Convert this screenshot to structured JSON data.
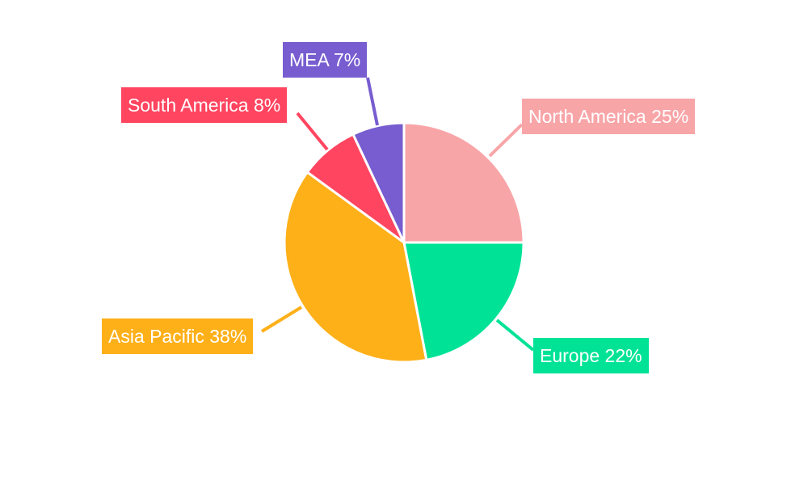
{
  "chart_data": {
    "type": "pie",
    "title": "",
    "start_angle": "12 o'clock, clockwise",
    "legend": "none",
    "slices": [
      {
        "label": "North America",
        "value": 25,
        "text": "North America 25%",
        "color": "#F8A5A8"
      },
      {
        "label": "Europe",
        "value": 22,
        "text": "Europe 22%",
        "color": "#00E396"
      },
      {
        "label": "Asia Pacific",
        "value": 38,
        "text": "Asia Pacific 38%",
        "color": "#FEB019"
      },
      {
        "label": "South America",
        "value": 8,
        "text": "South America 8%",
        "color": "#FF4560"
      },
      {
        "label": "MEA",
        "value": 7,
        "text": "MEA 7%",
        "color": "#775DD0"
      }
    ]
  }
}
